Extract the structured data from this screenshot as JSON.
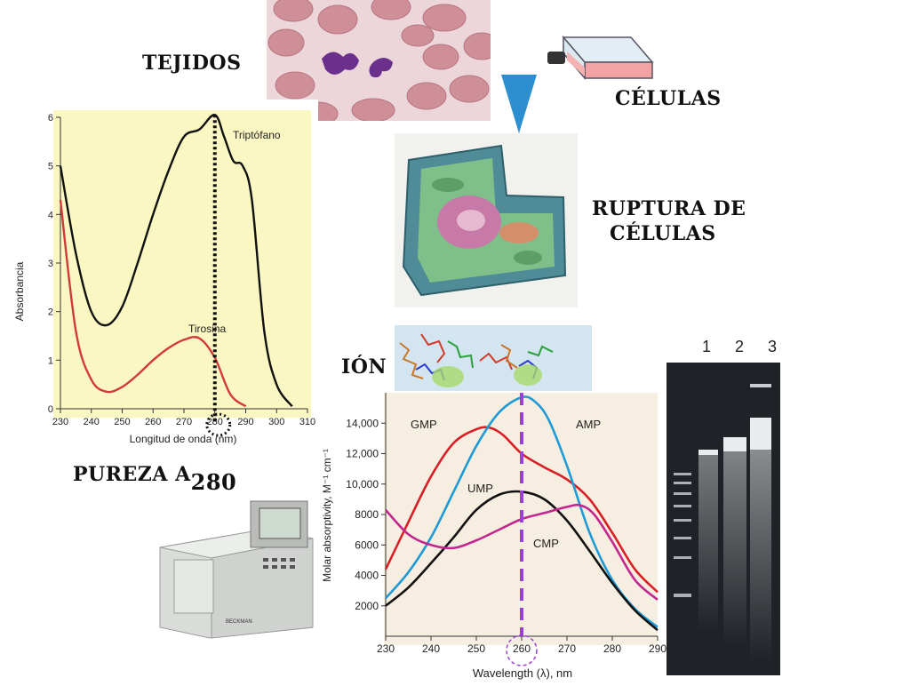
{
  "labels": {
    "tejidos": "TEJIDOS",
    "celulas": "CÉLULAS",
    "ruptura_line1": "RUPTURA DE",
    "ruptura_line2": "CÉLULAS",
    "ion": "IÓN",
    "pureza": "PUREZA A",
    "pureza_sub": "280"
  },
  "gel": {
    "lanes": [
      "1",
      "2",
      "3"
    ]
  },
  "spectrophotometer": {
    "brand": "BECKMAN"
  },
  "chart_data": [
    {
      "type": "line",
      "xlabel": "Longitud de onda (nm)",
      "ylabel": "Absorbancia",
      "xlim": [
        230,
        310
      ],
      "ylim": [
        0,
        6
      ],
      "xticks": [
        230,
        240,
        250,
        260,
        270,
        280,
        290,
        300,
        310
      ],
      "yticks": [
        0,
        1,
        2,
        3,
        4,
        5,
        6
      ],
      "grid": false,
      "marker_x": 280,
      "series": [
        {
          "name": "Triptófano",
          "color": "#111111",
          "x": [
            230,
            235,
            240,
            245,
            250,
            255,
            260,
            265,
            270,
            275,
            280,
            283,
            286,
            289,
            292,
            296,
            300,
            305
          ],
          "y": [
            5.0,
            3.2,
            2.0,
            1.72,
            2.1,
            3.0,
            4.0,
            4.9,
            5.6,
            5.75,
            6.05,
            5.6,
            5.1,
            5.0,
            4.3,
            1.6,
            0.5,
            0.05
          ]
        },
        {
          "name": "Tirosina",
          "color": "#d23a3a",
          "x": [
            230,
            235,
            240,
            245,
            250,
            255,
            260,
            265,
            270,
            275,
            280,
            285,
            290
          ],
          "y": [
            4.3,
            1.6,
            0.6,
            0.35,
            0.45,
            0.7,
            1.0,
            1.25,
            1.42,
            1.45,
            1.05,
            0.3,
            0.05
          ]
        }
      ]
    },
    {
      "type": "line",
      "xlabel": "Wavelength (λ), nm",
      "ylabel": "Molar absorptivity, M⁻¹ cm⁻¹",
      "xlim": [
        230,
        290
      ],
      "ylim": [
        0,
        16000
      ],
      "xticks": [
        230,
        240,
        250,
        260,
        270,
        280,
        290
      ],
      "yticks": [
        2000,
        4000,
        6000,
        8000,
        10000,
        12000,
        14000
      ],
      "tick_labels_y": [
        "2000",
        "4000",
        "6000",
        "8000",
        "10,000",
        "12,000",
        "14,000"
      ],
      "grid": false,
      "marker_x": 260,
      "series": [
        {
          "name": "GMP",
          "color": "#d81f26",
          "x": [
            230,
            235,
            240,
            245,
            250,
            253,
            256,
            260,
            265,
            270,
            275,
            280,
            285,
            290
          ],
          "y": [
            4400,
            7500,
            10500,
            12700,
            13600,
            13700,
            13200,
            12000,
            11100,
            10300,
            9000,
            6800,
            4400,
            2900
          ]
        },
        {
          "name": "AMP",
          "color": "#1f9ad6",
          "x": [
            230,
            235,
            240,
            245,
            250,
            255,
            260,
            263,
            266,
            270,
            275,
            280,
            285,
            290
          ],
          "y": [
            2500,
            4200,
            6500,
            9500,
            12500,
            14700,
            15700,
            15400,
            14200,
            11200,
            6800,
            3700,
            1800,
            600
          ]
        },
        {
          "name": "UMP",
          "color": "#111111",
          "x": [
            230,
            235,
            240,
            245,
            250,
            255,
            260,
            265,
            270,
            275,
            280,
            285,
            290
          ],
          "y": [
            2000,
            3200,
            4800,
            6500,
            8300,
            9300,
            9500,
            9000,
            7600,
            5600,
            3500,
            1700,
            400
          ]
        },
        {
          "name": "CMP",
          "color": "#c3278f",
          "x": [
            230,
            235,
            240,
            245,
            250,
            255,
            260,
            265,
            270,
            273,
            276,
            280,
            285,
            290
          ],
          "y": [
            8300,
            6700,
            6000,
            5800,
            6300,
            7000,
            7700,
            8100,
            8500,
            8600,
            8000,
            6200,
            3700,
            2400
          ]
        }
      ]
    }
  ]
}
